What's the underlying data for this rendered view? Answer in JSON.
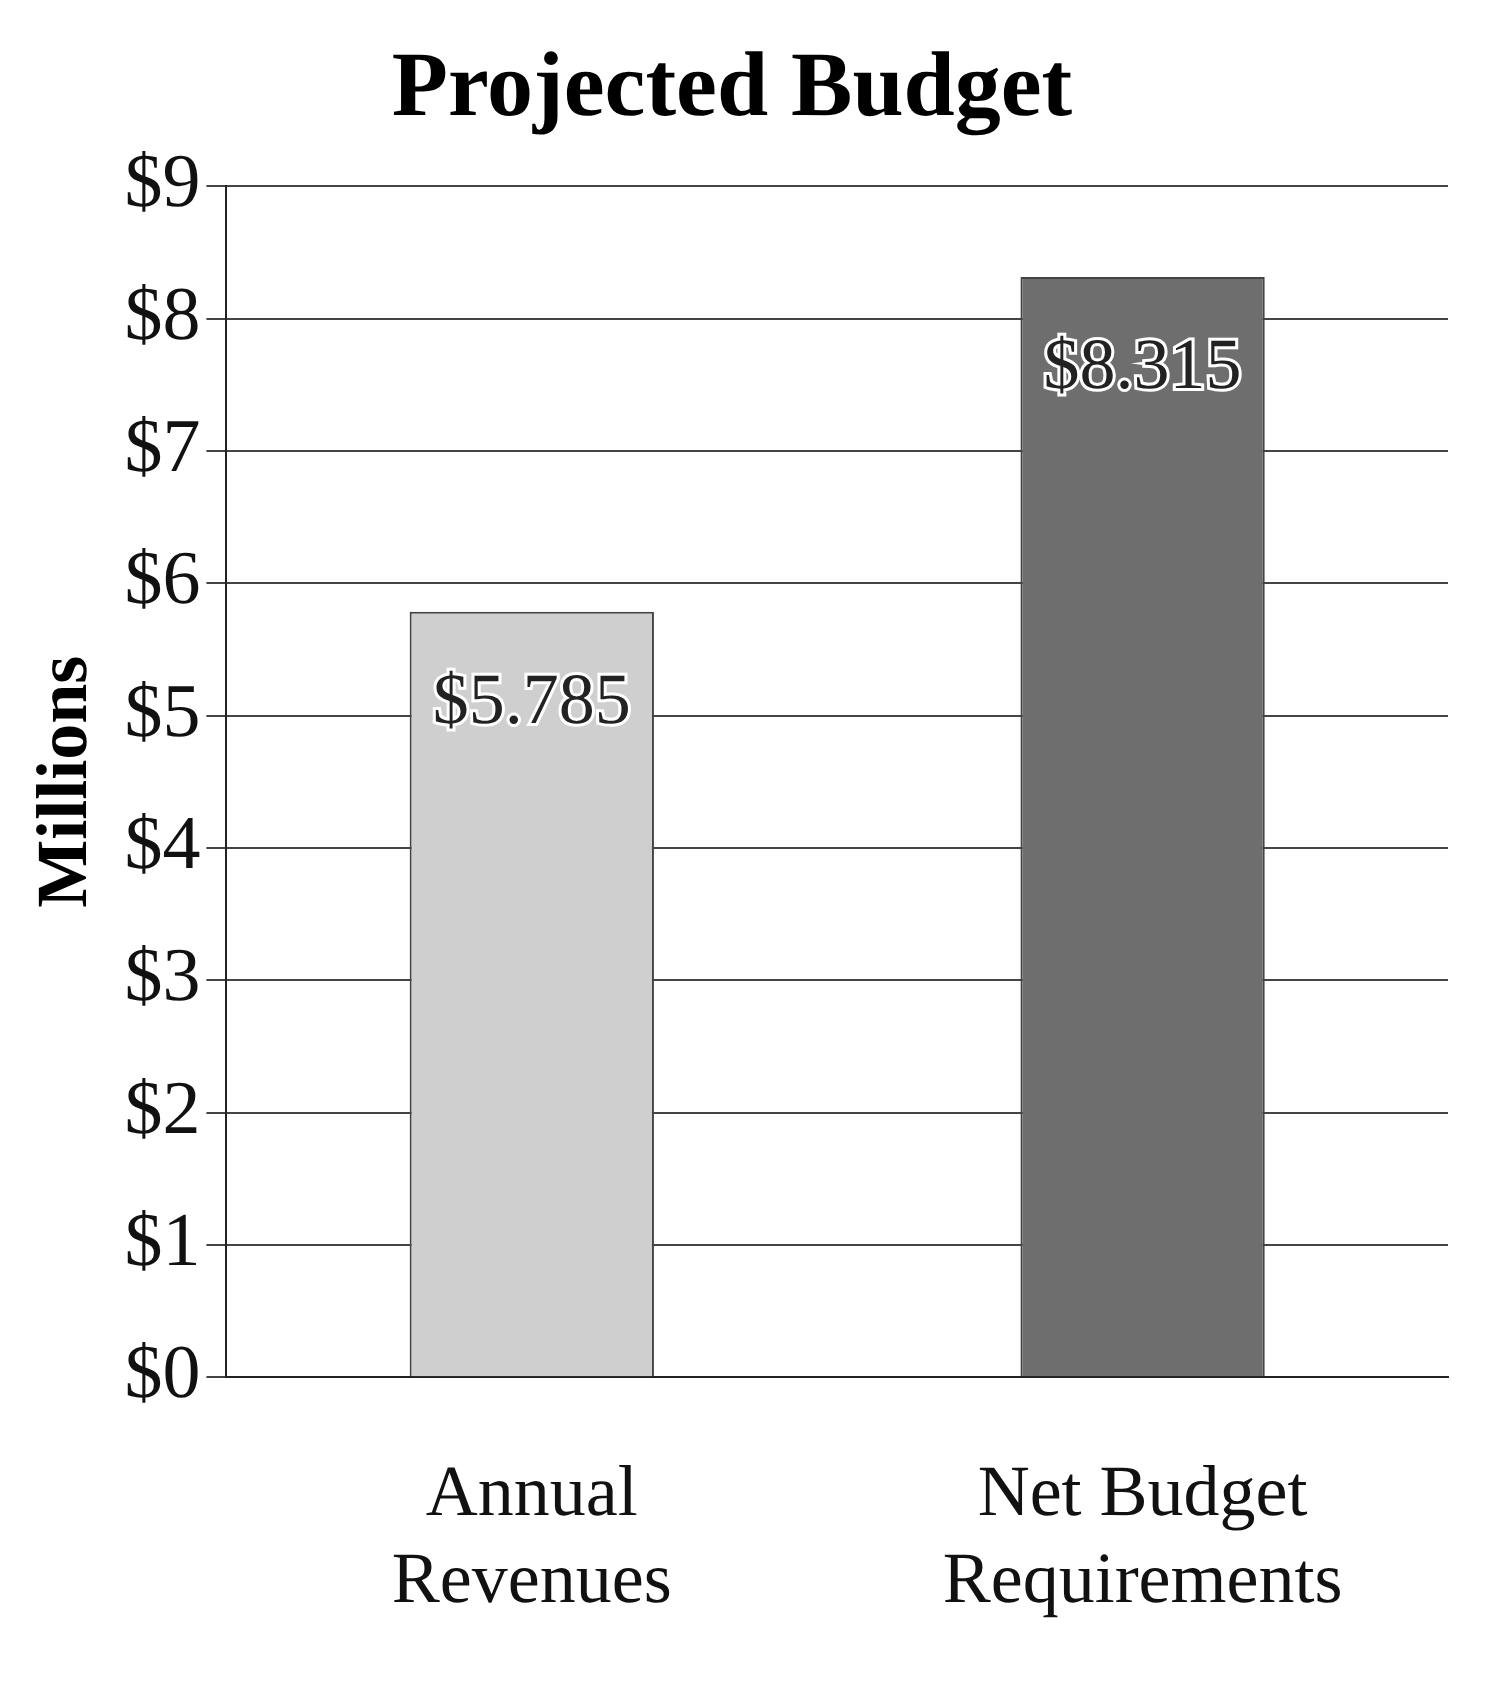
{
  "chart_data": {
    "type": "bar",
    "title": "Projected Budget",
    "ylabel": "Millions",
    "categories": [
      "Annual Revenues",
      "Net Budget Requirements"
    ],
    "values": [
      5.785,
      8.315
    ],
    "colors": [
      "#cfcfcf",
      "#6e6e6e"
    ],
    "value_labels": [
      "$5.785",
      "$8.315"
    ],
    "ylim": [
      0,
      9
    ],
    "yticks": [
      {
        "value": 0,
        "label": "$0"
      },
      {
        "value": 1,
        "label": "$1"
      },
      {
        "value": 2,
        "label": "$2"
      },
      {
        "value": 3,
        "label": "$3"
      },
      {
        "value": 4,
        "label": "$4"
      },
      {
        "value": 5,
        "label": "$5"
      },
      {
        "value": 6,
        "label": "$6"
      },
      {
        "value": 7,
        "label": "$7"
      },
      {
        "value": 8,
        "label": "$8"
      },
      {
        "value": 9,
        "label": "$9"
      }
    ],
    "grid": "y",
    "legend": false
  }
}
